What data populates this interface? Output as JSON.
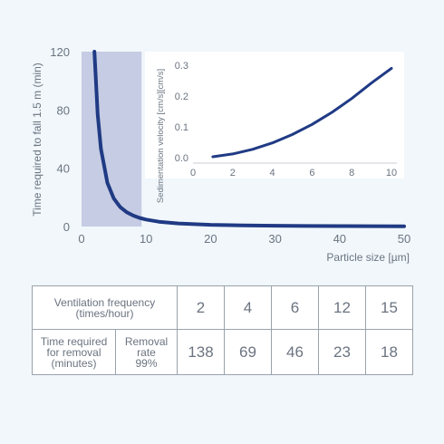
{
  "chart_data": {
    "type": "line",
    "main": {
      "ylabel": "Time required to fall 1.5 m (min)",
      "xlabel": "Particle size [µm]",
      "xlim": [
        0,
        50
      ],
      "ylim": [
        0,
        120
      ],
      "xticks": [
        "0",
        "10",
        "20",
        "30",
        "40",
        "50"
      ],
      "yticks": [
        "0",
        "40",
        "80",
        "120"
      ],
      "shaded_x_range": [
        0,
        9.3
      ],
      "series": [
        {
          "x": [
            2,
            2.5,
            3,
            4,
            5,
            6,
            7,
            8,
            9,
            10,
            12,
            15,
            20,
            25,
            30,
            35,
            40,
            45,
            50
          ],
          "values": [
            120,
            77,
            53.3,
            30,
            19.2,
            13.3,
            9.8,
            7.5,
            5.9,
            4.8,
            3.3,
            2.1,
            1.2,
            0.77,
            0.53,
            0.39,
            0.3,
            0.24,
            0.19
          ]
        }
      ]
    },
    "inset": {
      "ylabel": "Sedimentation velocity [cm/s][cm/s]",
      "xlim": [
        0,
        10
      ],
      "ylim": [
        0,
        0.3
      ],
      "xticks": [
        "0",
        "2",
        "4",
        "6",
        "8",
        "10"
      ],
      "yticks": [
        "0.0",
        "0.1",
        "0.2",
        "0.3"
      ],
      "series": [
        {
          "x": [
            1,
            2,
            3,
            4,
            5,
            6,
            7,
            8,
            9,
            10
          ],
          "values": [
            0.003,
            0.012,
            0.027,
            0.048,
            0.075,
            0.108,
            0.147,
            0.192,
            0.243,
            0.29
          ]
        }
      ]
    },
    "colors": {
      "line": "#203a84",
      "shade": "#c5cce3"
    }
  },
  "table": {
    "header_label": "Ventilation frequency\n(times/hour)",
    "frequencies": [
      "2",
      "4",
      "6",
      "12",
      "15"
    ],
    "row_label": "Time required\nfor removal\n(minutes)",
    "rate_label": "Removal\nrate\n99%",
    "minutes": [
      "138",
      "69",
      "46",
      "23",
      "18"
    ]
  }
}
